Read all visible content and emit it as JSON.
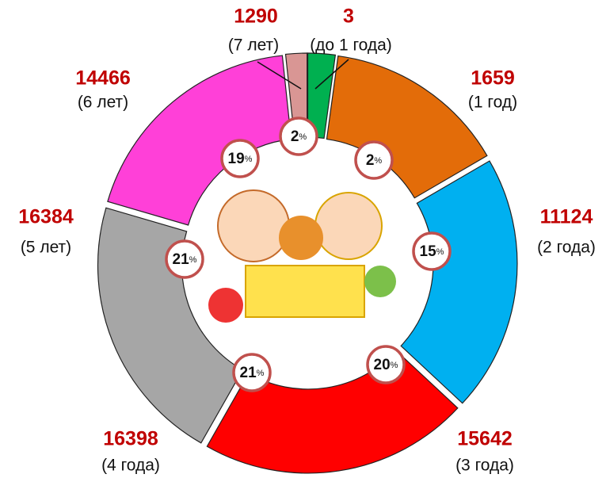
{
  "chart_data": {
    "type": "donut",
    "categories": [
      "(до 1  года)",
      "(1 год)",
      "(2 года)",
      "(3 года)",
      "(4 года)",
      "(5 лет)",
      "(6 лет)",
      "(7 лет)"
    ],
    "values": [
      3,
      1659,
      11124,
      15642,
      16398,
      16384,
      14466,
      1290
    ],
    "colors": [
      "#4f73a8",
      "#00b050",
      "#e36c09",
      "#00b0f0",
      "#ff0000",
      "#a6a6a6",
      "#ff40d8",
      "#d99694"
    ],
    "percent_labels": [
      null,
      2,
      15,
      20,
      21,
      21,
      19,
      2
    ],
    "percent_unit": "%"
  }
}
